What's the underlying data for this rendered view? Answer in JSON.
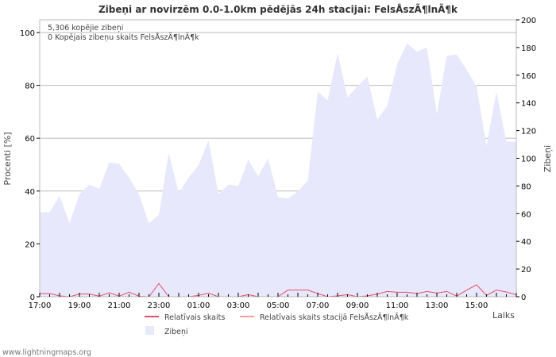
{
  "chart_data": {
    "type": "line",
    "title": "Zibeņi ar novirzēm 0.0-1.0km pēdējās 24h stacijai: FelsÅszÃ¶lnÃ¶k",
    "annotations": [
      "5,306 kopējie zibeņi",
      "0 Kopējais zibeņu skaits FelsÅszÃ¶lnÃ¶k"
    ],
    "xlabel": "Laiks",
    "ylabel_left": "Procenti  [%]",
    "ylabel_right": "Zibeņi",
    "ylim_left": [
      0,
      104.8
    ],
    "ylim_right": [
      0,
      200
    ],
    "left_ticks": [
      "0",
      "20",
      "40",
      "60",
      "80",
      "100"
    ],
    "right_ticks": [
      "0",
      "20",
      "40",
      "60",
      "80",
      "100",
      "120",
      "140",
      "160",
      "180",
      "200"
    ],
    "x_tick_labels": [
      "17:00",
      "19:00",
      "21:00",
      "23:00",
      "01:00",
      "03:00",
      "05:00",
      "07:00",
      "09:00",
      "11:00",
      "13:00",
      "15:00"
    ],
    "x_interval_hours": 0.5,
    "grid": true,
    "legend": [
      {
        "label": "Relatīvais skaits",
        "color": "#e0506a",
        "kind": "line"
      },
      {
        "label": "Relatīvais skaits stacijā FelsÅszÃ¶lnÃ¶k",
        "color": "#f4a0a0",
        "kind": "line"
      },
      {
        "label": "Zibeņi",
        "color": "#e8e8fc",
        "kind": "area"
      }
    ],
    "series": [
      {
        "name": "Zibeņi",
        "axis": "right",
        "type": "area",
        "values": [
          61,
          61,
          73,
          53,
          74,
          81,
          78,
          97,
          96,
          86,
          74,
          53,
          59,
          104,
          75,
          86,
          95,
          113,
          74,
          81,
          80,
          99,
          87,
          100,
          72,
          71,
          76,
          84,
          148,
          142,
          176,
          144,
          152,
          159,
          128,
          138,
          168,
          183,
          177,
          180,
          132,
          174,
          175,
          164,
          152,
          109,
          148,
          112,
          112
        ]
      },
      {
        "name": "Relatīvais skaits",
        "axis": "left",
        "type": "line",
        "values": [
          1.2,
          1.2,
          0.3,
          0,
          1,
          1,
          0.2,
          1.5,
          0.2,
          1.7,
          0.2,
          0,
          5,
          0,
          0,
          0,
          0.5,
          1.3,
          0,
          0,
          0,
          0.8,
          0,
          0,
          0,
          2.5,
          2.5,
          2.5,
          1.2,
          0,
          0.3,
          0.8,
          0,
          0.3,
          1,
          2,
          1.7,
          1.7,
          1.2,
          2,
          1.4,
          2,
          0.2,
          2.5,
          4.5,
          0.5,
          2.5,
          1.8,
          0.7
        ]
      },
      {
        "name": "Relatīvais skaits stacijā FelsÅszÃ¶lnÃ¶k",
        "axis": "left",
        "type": "line",
        "values": [
          0,
          0,
          0,
          0,
          0,
          0,
          0,
          0,
          0,
          0,
          0,
          0,
          0,
          0,
          0,
          0,
          0,
          0,
          0,
          0,
          0,
          0,
          0,
          0,
          0,
          0,
          0,
          0,
          0,
          0,
          0,
          0,
          0,
          0,
          0,
          0,
          0,
          0,
          0,
          0,
          0,
          0,
          0,
          0,
          0,
          0,
          0,
          0,
          0
        ]
      }
    ]
  },
  "footer": "www.lightningmaps.org"
}
